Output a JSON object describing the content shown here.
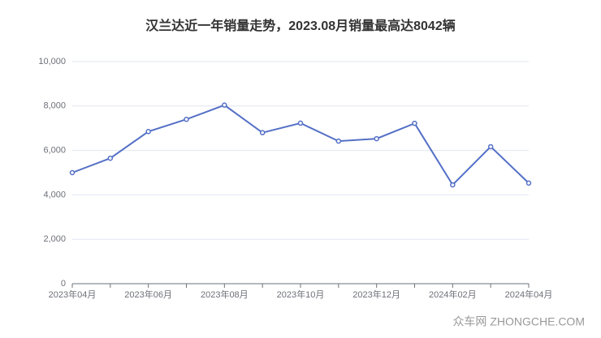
{
  "chart_data": {
    "type": "line",
    "title": "汉兰达近一年销量走势，2023.08月销量最高达8042辆",
    "categories": [
      "2023年04月",
      null,
      "2023年06月",
      null,
      "2023年08月",
      null,
      "2023年10月",
      null,
      "2023年12月",
      null,
      "2024年02月",
      null,
      "2024年04月"
    ],
    "series": [
      {
        "name": "销量",
        "color": "#5470c6",
        "values": [
          5000,
          5650,
          6850,
          7400,
          8042,
          6800,
          7230,
          6420,
          6530,
          7220,
          4450,
          6170,
          4530
        ]
      }
    ],
    "ylim": [
      0,
      10000
    ],
    "yticks": [
      0,
      {
        "value": 2000,
        "label": "2,000"
      },
      {
        "value": 4000,
        "label": "4,000"
      },
      {
        "value": 6000,
        "label": "6,000"
      },
      {
        "value": 8000,
        "label": "8,000"
      },
      {
        "value": 10000,
        "label": "10,000"
      }
    ],
    "grid": true,
    "watermark": "众车网 ZHONGCHE.COM"
  }
}
